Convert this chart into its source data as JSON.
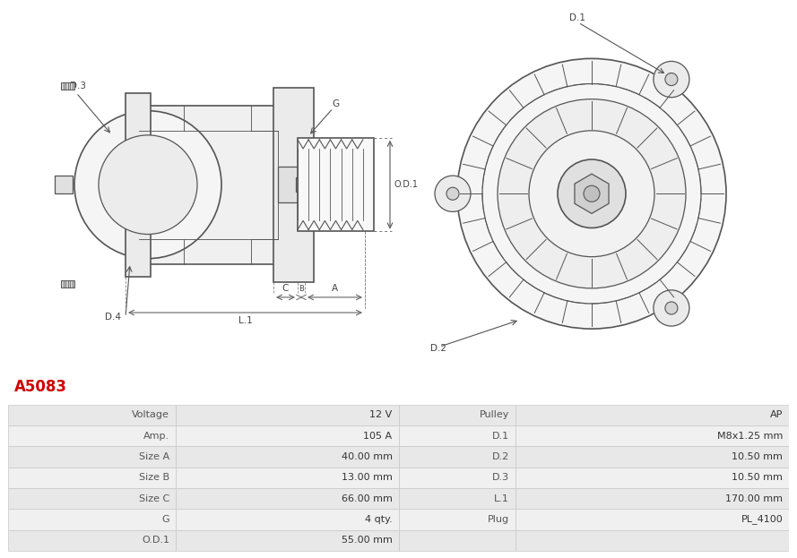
{
  "title": "A5083",
  "title_color": "#cc0000",
  "bg_color": "#ffffff",
  "table_rows": [
    [
      "Voltage",
      "12 V",
      "Pulley",
      "AP"
    ],
    [
      "Amp.",
      "105 A",
      "D.1",
      "M8x1.25 mm"
    ],
    [
      "Size A",
      "40.00 mm",
      "D.2",
      "10.50 mm"
    ],
    [
      "Size B",
      "13.00 mm",
      "D.3",
      "10.50 mm"
    ],
    [
      "Size C",
      "66.00 mm",
      "L.1",
      "170.00 mm"
    ],
    [
      "G",
      "4 qty.",
      "Plug",
      "PL_4100"
    ],
    [
      "O.D.1",
      "55.00 mm",
      "",
      ""
    ]
  ],
  "line_color": "#555555",
  "label_color": "#444444",
  "table_row_bg1": "#e8e8e8",
  "table_row_bg2": "#f0f0f0",
  "title_fontsize": 12,
  "table_fontsize": 8
}
